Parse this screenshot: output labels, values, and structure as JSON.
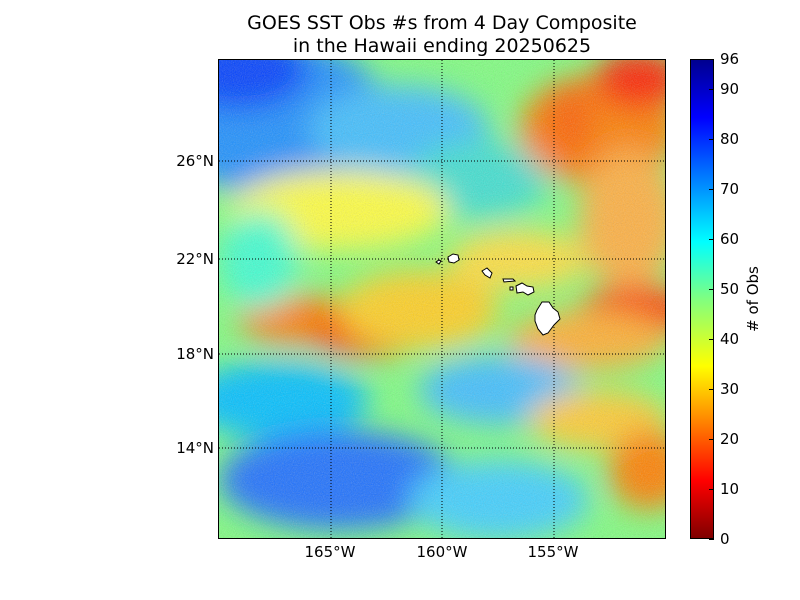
{
  "map": {
    "title_line1": "GOES SST Obs #s from 4 Day Composite",
    "title_line2": "in the Hawaii ending 20250625",
    "lon_labels": [
      "165°W",
      "160°W",
      "155°W"
    ],
    "lat_labels": [
      "26°N",
      "22°N",
      "18°N",
      "14°N"
    ],
    "colorbar": {
      "label": "# of Obs",
      "ticks": [
        "0",
        "10",
        "20",
        "30",
        "40",
        "50",
        "60",
        "70",
        "80",
        "90",
        "96"
      ],
      "range": [
        0,
        96
      ],
      "colormap": "jet"
    },
    "colors": {
      "land": "#ffffff",
      "gridline": "#000000"
    }
  }
}
